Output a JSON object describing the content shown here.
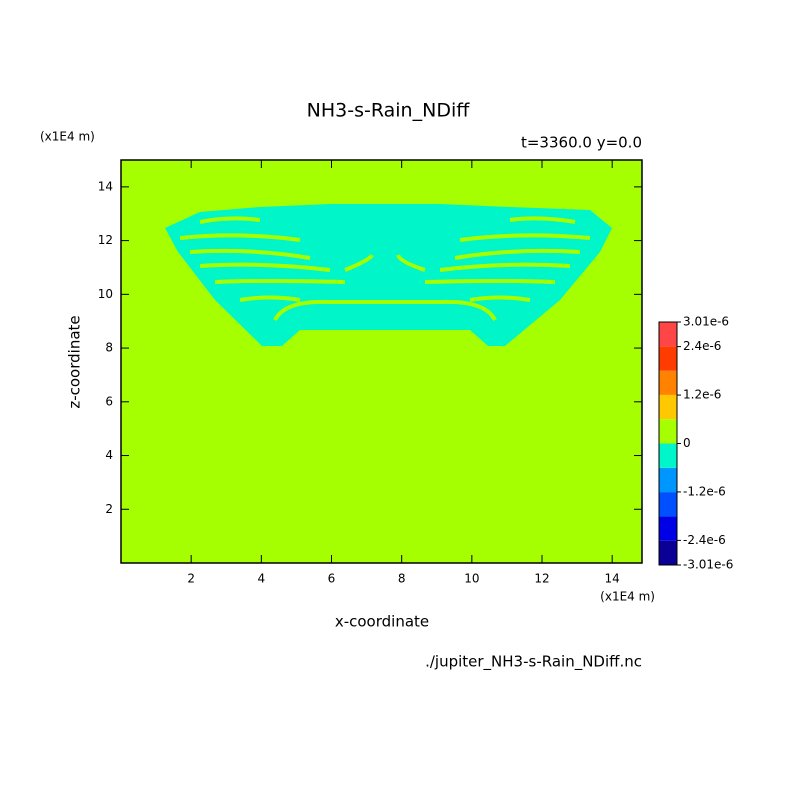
{
  "chart_data": {
    "type": "contour",
    "title": "NH3-s-Rain_NDiff",
    "subtitle": "t=3360.0 y=0.0",
    "x_label": "x-coordinate",
    "y_label": "z-coordinate",
    "x_unit": "(x1E4 m)",
    "y_unit": "(x1E4 m)",
    "footer": "./jupiter_NH3-s-Rain_NDiff.nc",
    "xlim": [
      0,
      14.85
    ],
    "ylim": [
      0,
      15
    ],
    "xticks": [
      2,
      4,
      6,
      8,
      10,
      12,
      14
    ],
    "yticks": [
      2,
      4,
      6,
      8,
      10,
      12,
      14
    ],
    "colorbar": {
      "lim": [
        -3.01e-06,
        3.01e-06
      ],
      "ticks": [
        {
          "value": 3.01e-06,
          "label": "3.01e-6"
        },
        {
          "value": 2.4e-06,
          "label": "2.4e-6"
        },
        {
          "value": 1.2e-06,
          "label": "1.2e-6"
        },
        0,
        {
          "value": -1.2e-06,
          "label": "-1.2e-6"
        },
        {
          "value": -2.4e-06,
          "label": "-2.4e-6"
        },
        {
          "value": -3.01e-06,
          "label": "-3.01e-6"
        }
      ],
      "colors": [
        "#0a0096",
        "#0000e6",
        "#0050ff",
        "#0096ff",
        "#00f5c8",
        "#a5ff00",
        "#ffc800",
        "#ff8200",
        "#ff3c00",
        "#ff4646"
      ]
    }
  }
}
